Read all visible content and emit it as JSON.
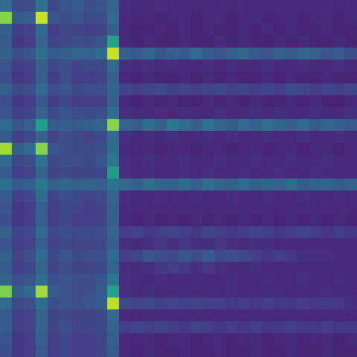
{
  "chart_data": {
    "type": "heatmap",
    "color": "viridis",
    "tick_labels": false,
    "zlim": [
      0,
      100
    ],
    "values": [
      [
        35,
        22,
        24,
        38,
        22,
        26,
        28,
        24,
        26,
        32,
        14,
        12,
        12,
        13,
        12,
        12,
        11,
        12,
        12,
        11,
        12,
        12,
        11,
        12,
        12,
        11,
        12,
        12,
        11,
        12
      ],
      [
        82,
        28,
        30,
        92,
        26,
        24,
        26,
        22,
        24,
        34,
        12,
        11,
        12,
        10,
        11,
        12,
        10,
        11,
        12,
        10,
        11,
        12,
        10,
        11,
        12,
        10,
        11,
        12,
        10,
        11
      ],
      [
        30,
        18,
        20,
        34,
        18,
        22,
        20,
        18,
        20,
        30,
        11,
        10,
        10,
        11,
        10,
        12,
        10,
        11,
        10,
        10,
        11,
        10,
        12,
        10,
        11,
        10,
        10,
        11,
        10,
        10
      ],
      [
        28,
        16,
        18,
        32,
        20,
        22,
        24,
        22,
        26,
        58,
        12,
        10,
        11,
        10,
        10,
        11,
        10,
        10,
        12,
        10,
        11,
        10,
        10,
        11,
        10,
        12,
        10,
        10,
        11,
        10
      ],
      [
        30,
        24,
        26,
        36,
        28,
        30,
        32,
        30,
        34,
        92,
        30,
        28,
        32,
        26,
        30,
        28,
        34,
        28,
        26,
        30,
        32,
        28,
        26,
        30,
        28,
        32,
        30,
        26,
        28,
        24
      ],
      [
        26,
        18,
        20,
        30,
        22,
        24,
        20,
        22,
        22,
        34,
        14,
        12,
        14,
        12,
        13,
        12,
        12,
        14,
        12,
        13,
        12,
        12,
        14,
        12,
        12,
        13,
        12,
        12,
        14,
        12
      ],
      [
        24,
        16,
        18,
        30,
        18,
        24,
        18,
        18,
        20,
        30,
        11,
        10,
        12,
        10,
        10,
        11,
        10,
        12,
        10,
        11,
        10,
        10,
        12,
        10,
        11,
        10,
        10,
        11,
        10,
        10
      ],
      [
        30,
        22,
        24,
        34,
        24,
        26,
        22,
        24,
        24,
        32,
        20,
        18,
        20,
        22,
        18,
        20,
        18,
        20,
        22,
        18,
        20,
        18,
        20,
        18,
        22,
        20,
        18,
        20,
        18,
        20
      ],
      [
        24,
        16,
        18,
        28,
        18,
        22,
        18,
        18,
        18,
        30,
        11,
        10,
        12,
        10,
        11,
        10,
        10,
        12,
        10,
        11,
        10,
        12,
        10,
        10,
        11,
        10,
        12,
        10,
        10,
        11
      ],
      [
        26,
        18,
        20,
        32,
        22,
        26,
        24,
        22,
        24,
        36,
        14,
        12,
        12,
        14,
        12,
        13,
        12,
        12,
        14,
        12,
        12,
        13,
        12,
        14,
        12,
        12,
        13,
        12,
        12,
        14
      ],
      [
        34,
        26,
        30,
        56,
        28,
        30,
        28,
        30,
        32,
        82,
        32,
        28,
        36,
        30,
        40,
        34,
        30,
        38,
        32,
        28,
        34,
        30,
        36,
        32,
        30,
        34,
        28,
        32,
        30,
        28
      ],
      [
        28,
        18,
        22,
        32,
        20,
        24,
        22,
        20,
        22,
        34,
        14,
        12,
        13,
        12,
        14,
        12,
        12,
        13,
        12,
        14,
        12,
        12,
        13,
        12,
        12,
        14,
        12,
        12,
        13,
        12
      ],
      [
        86,
        30,
        34,
        82,
        26,
        24,
        22,
        22,
        24,
        36,
        12,
        11,
        12,
        10,
        11,
        12,
        10,
        11,
        12,
        10,
        11,
        12,
        10,
        11,
        12,
        10,
        11,
        12,
        10,
        11
      ],
      [
        34,
        22,
        24,
        38,
        22,
        24,
        24,
        22,
        26,
        40,
        14,
        12,
        14,
        12,
        12,
        14,
        12,
        12,
        14,
        12,
        12,
        14,
        12,
        12,
        14,
        12,
        12,
        14,
        12,
        12
      ],
      [
        28,
        18,
        20,
        32,
        20,
        22,
        20,
        20,
        22,
        56,
        14,
        12,
        13,
        12,
        12,
        13,
        12,
        14,
        12,
        12,
        13,
        12,
        12,
        14,
        12,
        12,
        13,
        12,
        12,
        12
      ],
      [
        36,
        28,
        30,
        40,
        30,
        32,
        30,
        32,
        30,
        38,
        34,
        30,
        36,
        32,
        30,
        34,
        30,
        36,
        32,
        30,
        34,
        30,
        32,
        30,
        34,
        28,
        30,
        32,
        28,
        30
      ],
      [
        28,
        18,
        22,
        34,
        20,
        24,
        22,
        20,
        22,
        32,
        14,
        12,
        12,
        14,
        12,
        12,
        13,
        12,
        12,
        14,
        12,
        12,
        13,
        12,
        12,
        14,
        12,
        12,
        13,
        12
      ],
      [
        26,
        16,
        18,
        30,
        18,
        22,
        20,
        18,
        20,
        30,
        12,
        11,
        12,
        12,
        11,
        12,
        12,
        11,
        12,
        12,
        11,
        12,
        12,
        11,
        12,
        12,
        11,
        12,
        12,
        11
      ],
      [
        24,
        16,
        18,
        30,
        18,
        22,
        18,
        18,
        20,
        30,
        11,
        10,
        12,
        10,
        11,
        10,
        12,
        10,
        11,
        10,
        12,
        10,
        11,
        10,
        12,
        10,
        11,
        10,
        12,
        10
      ],
      [
        30,
        20,
        22,
        34,
        22,
        24,
        22,
        22,
        24,
        32,
        18,
        20,
        16,
        18,
        20,
        18,
        16,
        20,
        18,
        16,
        18,
        20,
        18,
        16,
        18,
        20,
        18,
        16,
        18,
        16
      ],
      [
        26,
        18,
        20,
        30,
        20,
        22,
        20,
        20,
        22,
        30,
        14,
        12,
        14,
        16,
        14,
        16,
        14,
        14,
        16,
        14,
        12,
        14,
        14,
        12,
        12,
        12,
        12,
        12,
        12,
        12
      ],
      [
        30,
        20,
        24,
        34,
        22,
        26,
        22,
        24,
        24,
        34,
        18,
        20,
        26,
        24,
        22,
        26,
        24,
        28,
        22,
        24,
        22,
        18,
        16,
        18,
        16,
        14,
        14,
        14,
        12,
        12
      ],
      [
        28,
        18,
        22,
        32,
        20,
        24,
        20,
        20,
        22,
        32,
        14,
        12,
        14,
        16,
        18,
        16,
        14,
        16,
        14,
        12,
        12,
        14,
        12,
        12,
        12,
        12,
        12,
        12,
        12,
        12
      ],
      [
        32,
        24,
        26,
        36,
        24,
        26,
        24,
        24,
        26,
        40,
        14,
        13,
        12,
        14,
        12,
        12,
        13,
        12,
        12,
        14,
        12,
        12,
        13,
        12,
        12,
        14,
        12,
        12,
        13,
        12
      ],
      [
        80,
        30,
        34,
        86,
        28,
        26,
        24,
        24,
        28,
        58,
        14,
        12,
        13,
        12,
        12,
        13,
        12,
        12,
        12,
        13,
        12,
        12,
        12,
        13,
        12,
        12,
        12,
        13,
        12,
        12
      ],
      [
        34,
        22,
        24,
        36,
        24,
        26,
        24,
        26,
        28,
        90,
        22,
        20,
        22,
        18,
        20,
        18,
        20,
        18,
        18,
        16,
        18,
        16,
        18,
        16,
        16,
        18,
        16,
        16,
        16,
        14
      ],
      [
        28,
        18,
        20,
        32,
        20,
        22,
        20,
        20,
        22,
        34,
        12,
        11,
        12,
        12,
        11,
        12,
        12,
        11,
        12,
        12,
        11,
        12,
        12,
        11,
        12,
        12,
        11,
        12,
        12,
        11
      ],
      [
        28,
        18,
        20,
        32,
        20,
        24,
        20,
        20,
        22,
        32,
        18,
        20,
        18,
        20,
        18,
        16,
        20,
        18,
        16,
        18,
        16,
        18,
        16,
        16,
        18,
        16,
        16,
        18,
        16,
        16
      ],
      [
        26,
        16,
        18,
        30,
        18,
        22,
        18,
        18,
        20,
        30,
        12,
        11,
        12,
        10,
        11,
        12,
        10,
        11,
        12,
        10,
        11,
        12,
        10,
        11,
        12,
        10,
        11,
        12,
        10,
        11
      ],
      [
        24,
        16,
        18,
        28,
        18,
        22,
        18,
        18,
        20,
        28,
        11,
        10,
        11,
        10,
        10,
        11,
        10,
        10,
        11,
        10,
        10,
        11,
        10,
        10,
        11,
        10,
        10,
        11,
        10,
        10
      ]
    ]
  }
}
